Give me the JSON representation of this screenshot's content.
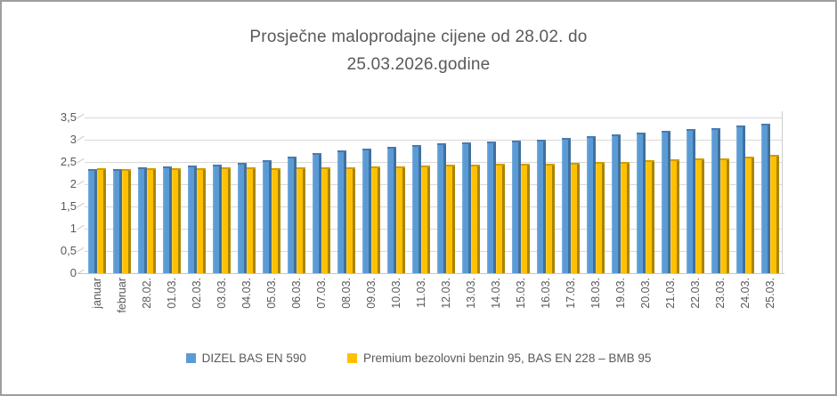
{
  "window": {
    "background": "#ffffff",
    "border_color": "#9e9e9e",
    "text_color": "#595959"
  },
  "chart_data": {
    "type": "bar",
    "title": "Prosječne maloprodajne cijene od 28.02. do 25.03.2026.godine",
    "title_lines": [
      "Prosječne maloprodajne cijene od 28.02. do",
      "25.03.2026.godine"
    ],
    "categories": [
      "januar",
      "februar",
      "28.02.",
      "01.03.",
      "02.03.",
      "03.03.",
      "04.03.",
      "05.03.",
      "06.03.",
      "07.03.",
      "08.03.",
      "09.03.",
      "10.03.",
      "11.03.",
      "12.03.",
      "13.03.",
      "14.03.",
      "15.03.",
      "16.03.",
      "17.03.",
      "18.03.",
      "19.03.",
      "20.03.",
      "21.03.",
      "22.03.",
      "23.03.",
      "24.03.",
      "25.03."
    ],
    "series": [
      {
        "name": "DIZEL BAS EN 590",
        "color": "#5B9BD5",
        "color_dark": "#41719C",
        "values": [
          2.33,
          2.34,
          2.37,
          2.4,
          2.41,
          2.43,
          2.47,
          2.55,
          2.62,
          2.7,
          2.76,
          2.8,
          2.84,
          2.88,
          2.92,
          2.94,
          2.96,
          2.98,
          3.0,
          3.03,
          3.07,
          3.11,
          3.16,
          3.2,
          3.23,
          3.26,
          3.31,
          3.36
        ]
      },
      {
        "name": "Premium bezolovni benzin 95, BAS EN 228 – BMB 95",
        "color": "#FFC000",
        "color_dark": "#BF8F00",
        "values": [
          2.35,
          2.34,
          2.36,
          2.36,
          2.36,
          2.37,
          2.37,
          2.35,
          2.37,
          2.38,
          2.38,
          2.39,
          2.4,
          2.42,
          2.43,
          2.44,
          2.45,
          2.46,
          2.46,
          2.47,
          2.49,
          2.51,
          2.54,
          2.56,
          2.57,
          2.58,
          2.61,
          2.66
        ]
      }
    ],
    "y_ticks": [
      "3,5",
      "3",
      "2,5",
      "2",
      "1,5",
      "1",
      "0,5",
      "0"
    ],
    "ylim": [
      0,
      3.5
    ],
    "xlabel": "",
    "ylabel": "",
    "grid": true,
    "legend_position": "bottom"
  }
}
